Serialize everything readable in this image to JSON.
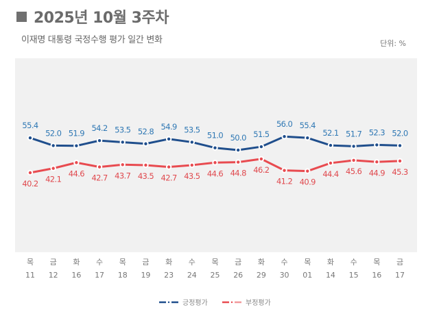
{
  "header": {
    "title": "2025년 10월 3주차",
    "subtitle": "이재명 대통령 국정수행 평가 일간 변화",
    "unit": "단위: %"
  },
  "colors": {
    "positive": "#1f4e8c",
    "positive_label": "#2f78b4",
    "negative": "#e84b50",
    "negative_label": "#e0494e",
    "plot_bg": "#f1f1f1"
  },
  "chart_data": {
    "type": "line",
    "title": "이재명 대통령 국정수행 평가 일간 변화",
    "xlabel": "",
    "ylabel": "%",
    "categories": [
      {
        "day": "목",
        "date": "11"
      },
      {
        "day": "금",
        "date": "12"
      },
      {
        "day": "화",
        "date": "16"
      },
      {
        "day": "수",
        "date": "17"
      },
      {
        "day": "목",
        "date": "18"
      },
      {
        "day": "금",
        "date": "19"
      },
      {
        "day": "화",
        "date": "23"
      },
      {
        "day": "수",
        "date": "24"
      },
      {
        "day": "목",
        "date": "25"
      },
      {
        "day": "금",
        "date": "26"
      },
      {
        "day": "화",
        "date": "29"
      },
      {
        "day": "수",
        "date": "30"
      },
      {
        "day": "목",
        "date": "01"
      },
      {
        "day": "화",
        "date": "14"
      },
      {
        "day": "수",
        "date": "15"
      },
      {
        "day": "목",
        "date": "16"
      },
      {
        "day": "금",
        "date": "17"
      }
    ],
    "series": [
      {
        "name": "긍정평가",
        "values": [
          55.4,
          52.0,
          51.9,
          54.2,
          53.5,
          52.8,
          54.9,
          53.5,
          51.0,
          50.0,
          51.5,
          56.0,
          55.4,
          52.1,
          51.7,
          52.3,
          52.0
        ]
      },
      {
        "name": "부정평가",
        "values": [
          40.2,
          42.1,
          44.6,
          42.7,
          43.7,
          43.5,
          42.7,
          43.5,
          44.6,
          44.8,
          46.2,
          41.2,
          40.9,
          44.4,
          45.6,
          44.9,
          45.3
        ]
      }
    ],
    "legend": {
      "position": "bottom-center",
      "entries": [
        "긍정평가",
        "부정평가"
      ]
    },
    "grid": false
  }
}
